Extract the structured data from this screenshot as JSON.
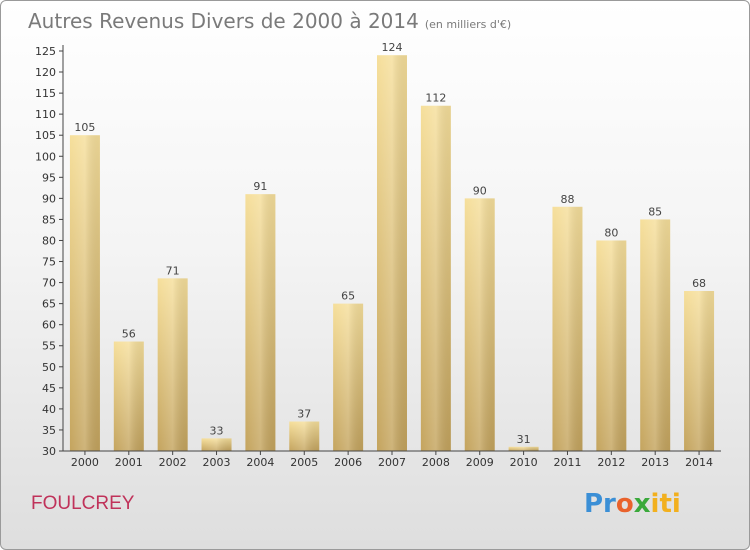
{
  "title": {
    "main": "Autres Revenus Divers de 2000 à 2014",
    "unit": "(en milliers d'€)"
  },
  "commune": "FOULCREY",
  "logo": {
    "p": "Pr",
    "o": "o",
    "x": "x",
    "iti": "iti"
  },
  "colors": {
    "bar_top": "#f6df9b",
    "bar_bottom": "#c4a45e",
    "axis": "#444444",
    "grid": "#cfcfcf"
  },
  "chart_data": {
    "type": "bar",
    "title": "Autres Revenus Divers de 2000 à 2014",
    "subtitle": "(en milliers d'€)",
    "xlabel": "",
    "ylabel": "",
    "categories": [
      "2000",
      "2001",
      "2002",
      "2003",
      "2004",
      "2005",
      "2006",
      "2007",
      "2008",
      "2009",
      "2010",
      "2011",
      "2012",
      "2013",
      "2014"
    ],
    "values": [
      105,
      56,
      71,
      33,
      91,
      37,
      65,
      124,
      112,
      90,
      31,
      88,
      80,
      85,
      68
    ],
    "ylim": [
      30,
      125
    ],
    "yticks": [
      30,
      35,
      40,
      45,
      50,
      55,
      60,
      65,
      70,
      75,
      80,
      85,
      90,
      95,
      100,
      105,
      110,
      115,
      120,
      125
    ],
    "grid": false,
    "data_labels": true
  }
}
